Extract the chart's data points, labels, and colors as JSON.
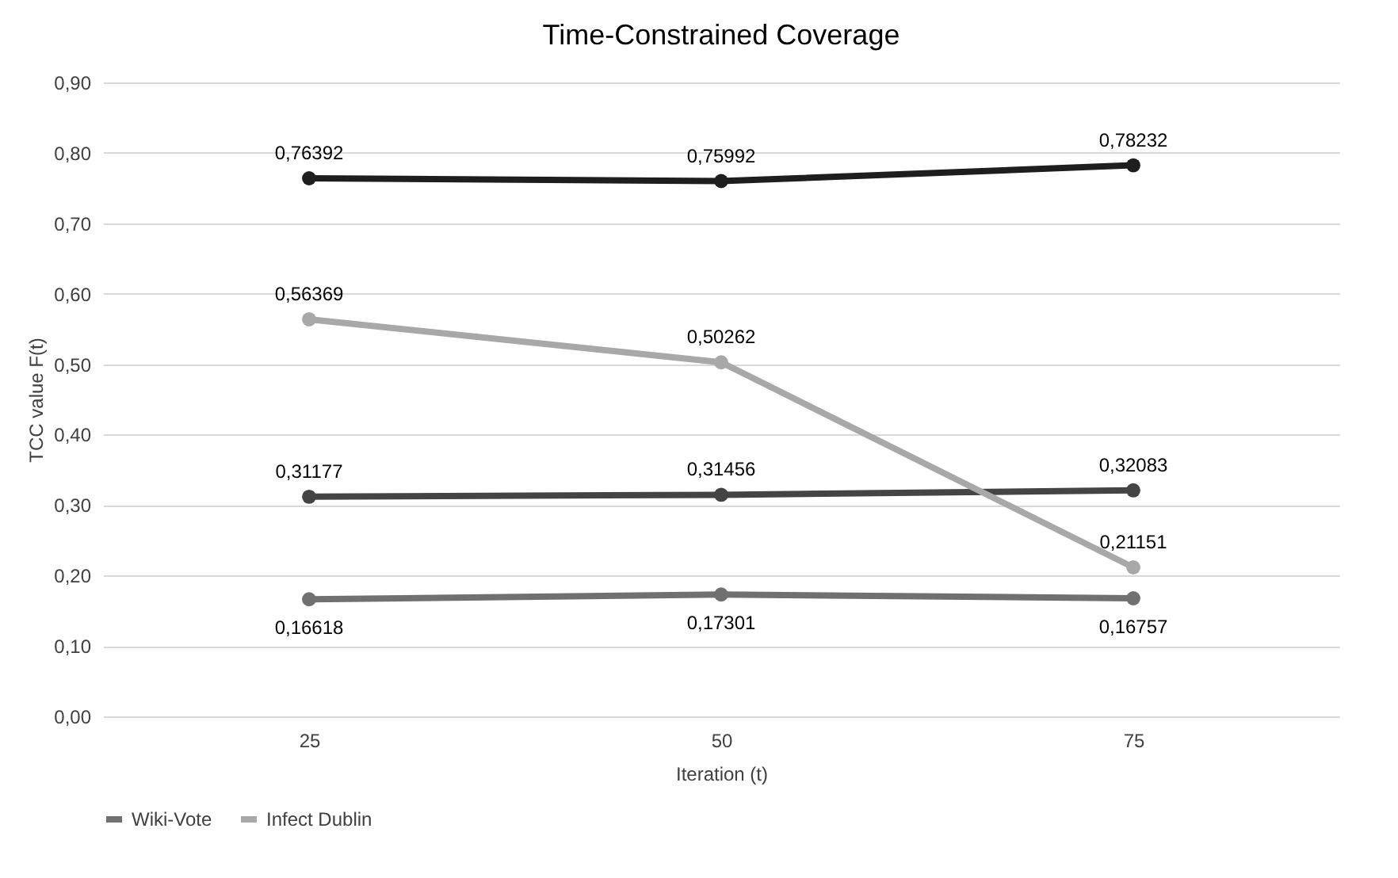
{
  "chart_data": {
    "type": "line",
    "title": "Time-Constrained Coverage",
    "xlabel": "Iteration (t)",
    "ylabel": "TCC value F(t)",
    "categories": [
      "25",
      "50",
      "75"
    ],
    "series": [
      {
        "color": "#1e1e1e",
        "values": [
          0.76392,
          0.75992,
          0.78232
        ],
        "value_labels": [
          "0,76392",
          "0,75992",
          "0,78232"
        ]
      },
      {
        "color": "#444444",
        "values": [
          0.31177,
          0.31456,
          0.32083
        ],
        "value_labels": [
          "0,31177",
          "0,31456",
          "0,32083"
        ]
      },
      {
        "name": "Wiki-Vote",
        "color": "#707070",
        "values": [
          0.16618,
          0.17301,
          0.16757
        ],
        "value_labels": [
          "0,16618",
          "0,17301",
          "0,16757"
        ]
      },
      {
        "name": "Infect Dublin",
        "color": "#a8a8a8",
        "values": [
          0.56369,
          0.50262,
          0.21151
        ],
        "value_labels": [
          "0,56369",
          "0,50262",
          "0,21151"
        ]
      }
    ],
    "ylim": [
      0,
      0.9
    ],
    "yticks": [
      {
        "value": 0,
        "label": "0,00"
      },
      {
        "value": 0.1,
        "label": "0,10"
      },
      {
        "value": 0.2,
        "label": "0,20"
      },
      {
        "value": 0.3,
        "label": "0,30"
      },
      {
        "value": 0.4,
        "label": "0,40"
      },
      {
        "value": 0.5,
        "label": "0,50"
      },
      {
        "value": 0.6,
        "label": "0,60"
      },
      {
        "value": 0.7,
        "label": "0,70"
      },
      {
        "value": 0.8,
        "label": "0,80"
      },
      {
        "value": 0.9,
        "label": "0,90"
      }
    ],
    "grid": "y",
    "legend": "bottom",
    "marker": "circle",
    "line_style": "solid"
  }
}
